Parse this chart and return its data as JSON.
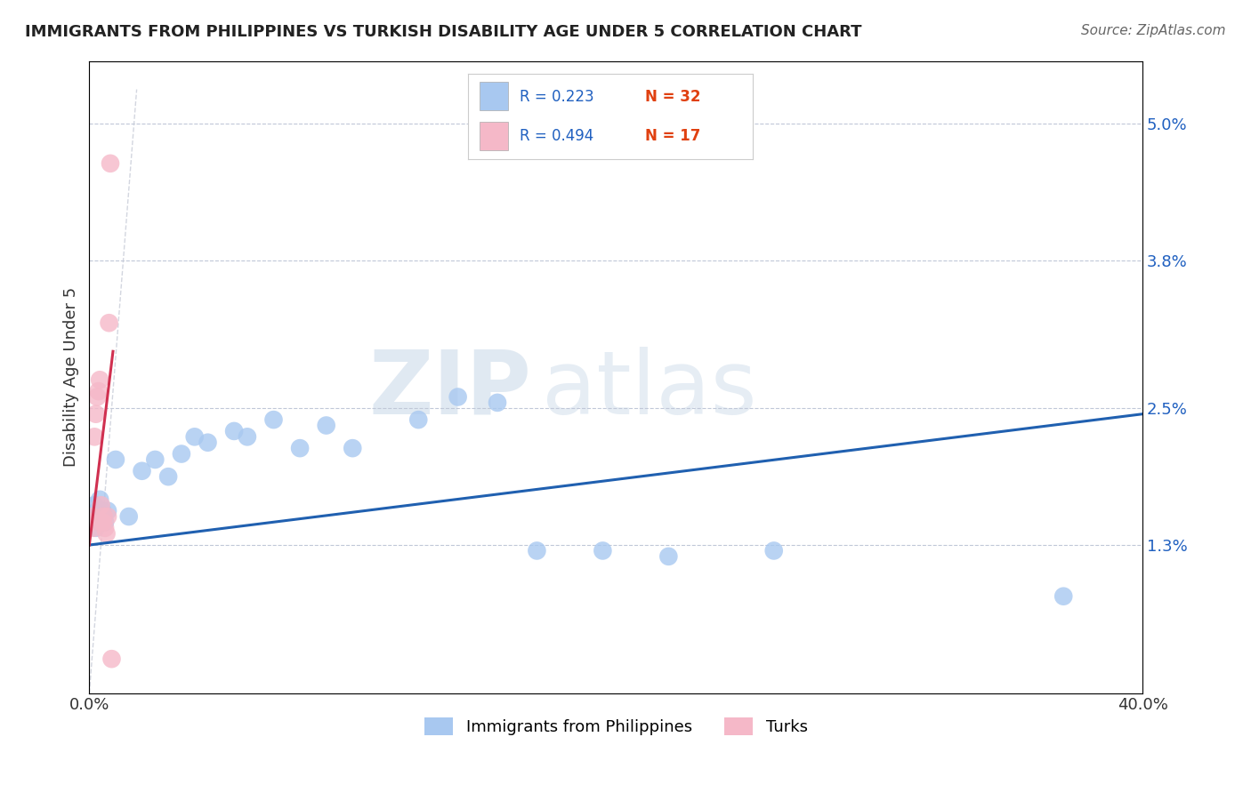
{
  "title": "IMMIGRANTS FROM PHILIPPINES VS TURKISH DISABILITY AGE UNDER 5 CORRELATION CHART",
  "source": "Source: ZipAtlas.com",
  "ylabel": "Disability Age Under 5",
  "xlim": [
    0.0,
    40.0
  ],
  "ylim": [
    0.0,
    5.55
  ],
  "yticks_right": [
    1.3,
    2.5,
    3.8,
    5.0
  ],
  "ytick_labels_right": [
    "1.3%",
    "2.5%",
    "3.8%",
    "5.0%"
  ],
  "legend1_label": "Immigrants from Philippines",
  "legend2_label": "Turks",
  "r1": "0.223",
  "n1": "32",
  "r2": "0.494",
  "n2": "17",
  "color_blue": "#a8c8f0",
  "color_pink": "#f5b8c8",
  "color_blue_line": "#2060b0",
  "color_pink_line": "#d03050",
  "color_dashed": "#c8ccd8",
  "blue_x": [
    0.15,
    0.2,
    0.25,
    0.3,
    0.35,
    0.4,
    0.5,
    0.55,
    0.6,
    0.7,
    1.0,
    1.5,
    2.0,
    2.5,
    3.0,
    3.5,
    4.0,
    4.5,
    5.5,
    6.0,
    7.0,
    8.0,
    9.0,
    10.0,
    12.5,
    14.0,
    15.5,
    17.0,
    19.5,
    22.0,
    26.0,
    37.0
  ],
  "blue_y": [
    1.55,
    1.65,
    1.45,
    1.6,
    1.5,
    1.7,
    1.6,
    1.55,
    1.5,
    1.6,
    2.05,
    1.55,
    1.95,
    2.05,
    1.9,
    2.1,
    2.25,
    2.2,
    2.3,
    2.25,
    2.4,
    2.15,
    2.35,
    2.15,
    2.4,
    2.6,
    2.55,
    1.25,
    1.25,
    1.2,
    1.25,
    0.85
  ],
  "pink_x": [
    0.05,
    0.1,
    0.15,
    0.2,
    0.25,
    0.3,
    0.35,
    0.4,
    0.45,
    0.5,
    0.55,
    0.6,
    0.65,
    0.7,
    0.75,
    0.8,
    0.85
  ],
  "pink_y": [
    1.5,
    1.55,
    1.45,
    2.25,
    2.45,
    2.6,
    2.65,
    2.75,
    1.65,
    1.5,
    1.55,
    1.45,
    1.4,
    1.55,
    3.25,
    4.65,
    0.3
  ],
  "blue_trend_x0": 0.0,
  "blue_trend_y0": 1.3,
  "blue_trend_x1": 40.0,
  "blue_trend_y1": 2.45,
  "pink_trend_x0": 0.0,
  "pink_trend_y0": 1.3,
  "pink_trend_x1": 0.9,
  "pink_trend_y1": 3.0,
  "background_color": "#ffffff",
  "watermark_zip": "ZIP",
  "watermark_atlas": "atlas"
}
